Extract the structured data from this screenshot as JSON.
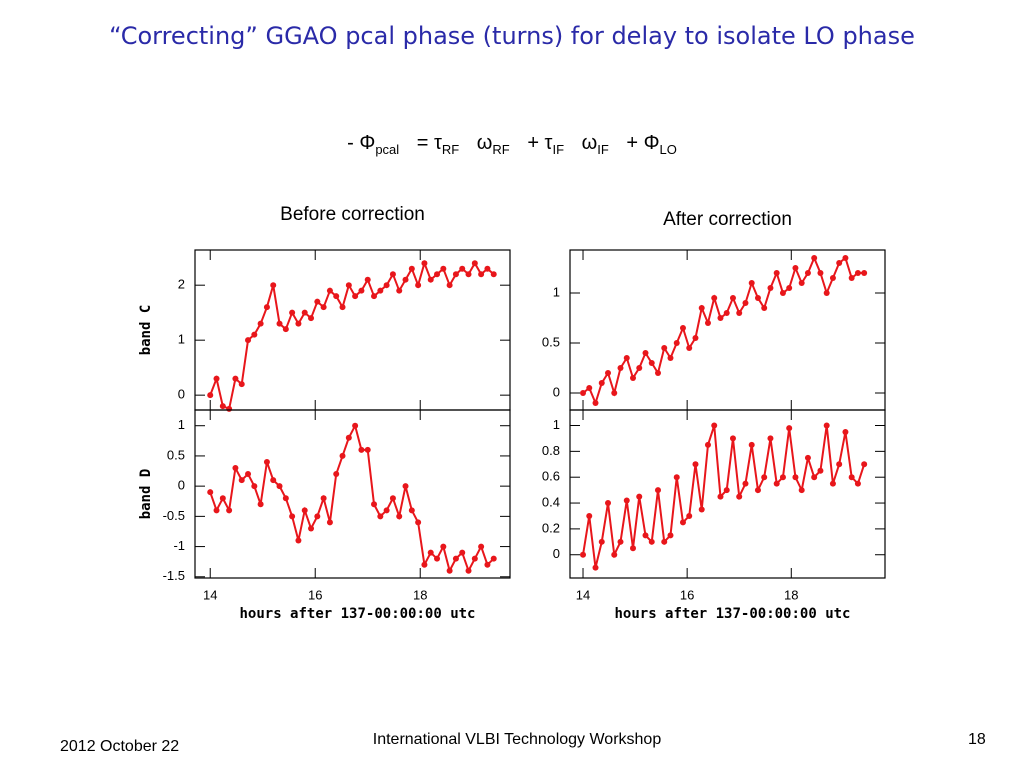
{
  "title": "“Correcting” GGAO pcal phase (turns) for delay to isolate LO phase",
  "formula": [
    {
      "text": "- Φ",
      "sub": "pcal"
    },
    {
      "text": "= τ",
      "sub": "RF"
    },
    {
      "text": "ω",
      "sub": "RF"
    },
    {
      "text": "+ τ",
      "sub": "IF"
    },
    {
      "text": "ω",
      "sub": "IF"
    },
    {
      "text": "+ Φ",
      "sub": "LO"
    }
  ],
  "chart_data": [
    {
      "type": "line",
      "title": "Before correction",
      "ylabel": "band C",
      "color": "#e8161b",
      "x": [
        14.0,
        14.12,
        14.24,
        14.36,
        14.48,
        14.6,
        14.72,
        14.84,
        14.96,
        15.08,
        15.2,
        15.32,
        15.44,
        15.56,
        15.68,
        15.8,
        15.92,
        16.04,
        16.16,
        16.28,
        16.4,
        16.52,
        16.64,
        16.76,
        16.88,
        17.0,
        17.12,
        17.24,
        17.36,
        17.48,
        17.6,
        17.72,
        17.84,
        17.96,
        18.08,
        18.2,
        18.32,
        18.44,
        18.56,
        18.68,
        18.8,
        18.92,
        19.04,
        19.16,
        19.28,
        19.4
      ],
      "values": [
        0.0,
        0.3,
        -0.2,
        -0.25,
        0.3,
        0.2,
        1.0,
        1.1,
        1.3,
        1.6,
        2.0,
        1.3,
        1.2,
        1.5,
        1.3,
        1.5,
        1.4,
        1.7,
        1.6,
        1.9,
        1.8,
        1.6,
        2.0,
        1.8,
        1.9,
        2.1,
        1.8,
        1.9,
        2.0,
        2.2,
        1.9,
        2.1,
        2.3,
        2.0,
        2.4,
        2.1,
        2.2,
        2.3,
        2.0,
        2.2,
        2.3,
        2.2,
        2.4,
        2.2,
        2.3,
        2.2
      ],
      "xlim": [
        13.71,
        19.71
      ],
      "xticks": [
        14,
        16,
        18
      ],
      "ylim": [
        -0.27,
        2.64
      ],
      "yticks": [
        0,
        1,
        2
      ]
    },
    {
      "type": "line",
      "ylabel": "band D",
      "xlabel": "hours after 137-00:00:00 utc",
      "color": "#e8161b",
      "x": [
        14.0,
        14.12,
        14.24,
        14.36,
        14.48,
        14.6,
        14.72,
        14.84,
        14.96,
        15.08,
        15.2,
        15.32,
        15.44,
        15.56,
        15.68,
        15.8,
        15.92,
        16.04,
        16.16,
        16.28,
        16.4,
        16.52,
        16.64,
        16.76,
        16.88,
        17.0,
        17.12,
        17.24,
        17.36,
        17.48,
        17.6,
        17.72,
        17.84,
        17.96,
        18.08,
        18.2,
        18.32,
        18.44,
        18.56,
        18.68,
        18.8,
        18.92,
        19.04,
        19.16,
        19.28,
        19.4
      ],
      "values": [
        -0.1,
        -0.4,
        -0.2,
        -0.4,
        0.3,
        0.1,
        0.2,
        0.0,
        -0.3,
        0.4,
        0.1,
        0.0,
        -0.2,
        -0.5,
        -0.9,
        -0.4,
        -0.7,
        -0.5,
        -0.2,
        -0.6,
        0.2,
        0.5,
        0.8,
        1.0,
        0.6,
        0.6,
        -0.3,
        -0.5,
        -0.4,
        -0.2,
        -0.5,
        0.0,
        -0.4,
        -0.6,
        -1.3,
        -1.1,
        -1.2,
        -1.0,
        -1.4,
        -1.2,
        -1.1,
        -1.4,
        -1.2,
        -1.0,
        -1.3,
        -1.2
      ],
      "xlim": [
        13.71,
        19.71
      ],
      "xticks": [
        14,
        16,
        18
      ],
      "ylim": [
        -1.52,
        1.26
      ],
      "yticks": [
        -1.5,
        -1,
        -0.5,
        0,
        0.5,
        1
      ]
    },
    {
      "type": "line",
      "title": "After correction",
      "color": "#e8161b",
      "x": [
        14.0,
        14.12,
        14.24,
        14.36,
        14.48,
        14.6,
        14.72,
        14.84,
        14.96,
        15.08,
        15.2,
        15.32,
        15.44,
        15.56,
        15.68,
        15.8,
        15.92,
        16.04,
        16.16,
        16.28,
        16.4,
        16.52,
        16.64,
        16.76,
        16.88,
        17.0,
        17.12,
        17.24,
        17.36,
        17.48,
        17.6,
        17.72,
        17.84,
        17.96,
        18.08,
        18.2,
        18.32,
        18.44,
        18.56,
        18.68,
        18.8,
        18.92,
        19.04,
        19.16,
        19.28,
        19.4
      ],
      "values": [
        0.0,
        0.05,
        -0.1,
        0.1,
        0.2,
        0.0,
        0.25,
        0.35,
        0.15,
        0.25,
        0.4,
        0.3,
        0.2,
        0.45,
        0.35,
        0.5,
        0.65,
        0.45,
        0.55,
        0.85,
        0.7,
        0.95,
        0.75,
        0.8,
        0.95,
        0.8,
        0.9,
        1.1,
        0.95,
        0.85,
        1.05,
        1.2,
        1.0,
        1.05,
        1.25,
        1.1,
        1.2,
        1.35,
        1.2,
        1.0,
        1.15,
        1.3,
        1.35,
        1.15,
        1.2,
        1.2
      ],
      "xlim": [
        13.75,
        19.8
      ],
      "xticks": [
        14,
        16,
        18
      ],
      "ylim": [
        -0.17,
        1.43
      ],
      "yticks": [
        0,
        0.5,
        1
      ]
    },
    {
      "type": "line",
      "xlabel": "hours after 137-00:00:00 utc",
      "color": "#e8161b",
      "x": [
        14.0,
        14.12,
        14.24,
        14.36,
        14.48,
        14.6,
        14.72,
        14.84,
        14.96,
        15.08,
        15.2,
        15.32,
        15.44,
        15.56,
        15.68,
        15.8,
        15.92,
        16.04,
        16.16,
        16.28,
        16.4,
        16.52,
        16.64,
        16.76,
        16.88,
        17.0,
        17.12,
        17.24,
        17.36,
        17.48,
        17.6,
        17.72,
        17.84,
        17.96,
        18.08,
        18.2,
        18.32,
        18.44,
        18.56,
        18.68,
        18.8,
        18.92,
        19.04,
        19.16,
        19.28,
        19.4
      ],
      "values": [
        0.0,
        0.3,
        -0.1,
        0.1,
        0.4,
        0.0,
        0.1,
        0.42,
        0.05,
        0.45,
        0.15,
        0.1,
        0.5,
        0.1,
        0.15,
        0.6,
        0.25,
        0.3,
        0.7,
        0.35,
        0.85,
        1.0,
        0.45,
        0.5,
        0.9,
        0.45,
        0.55,
        0.85,
        0.5,
        0.6,
        0.9,
        0.55,
        0.6,
        0.98,
        0.6,
        0.5,
        0.75,
        0.6,
        0.65,
        1.0,
        0.55,
        0.7,
        0.95,
        0.6,
        0.55,
        0.7
      ],
      "xlim": [
        13.75,
        19.8
      ],
      "xticks": [
        14,
        16,
        18
      ],
      "ylim": [
        -0.18,
        1.12
      ],
      "yticks": [
        0,
        0.2,
        0.4,
        0.6,
        0.8,
        1
      ]
    }
  ],
  "footer": {
    "date": "2012 October 22",
    "event": "International VLBI Technology Workshop",
    "page": "18"
  }
}
